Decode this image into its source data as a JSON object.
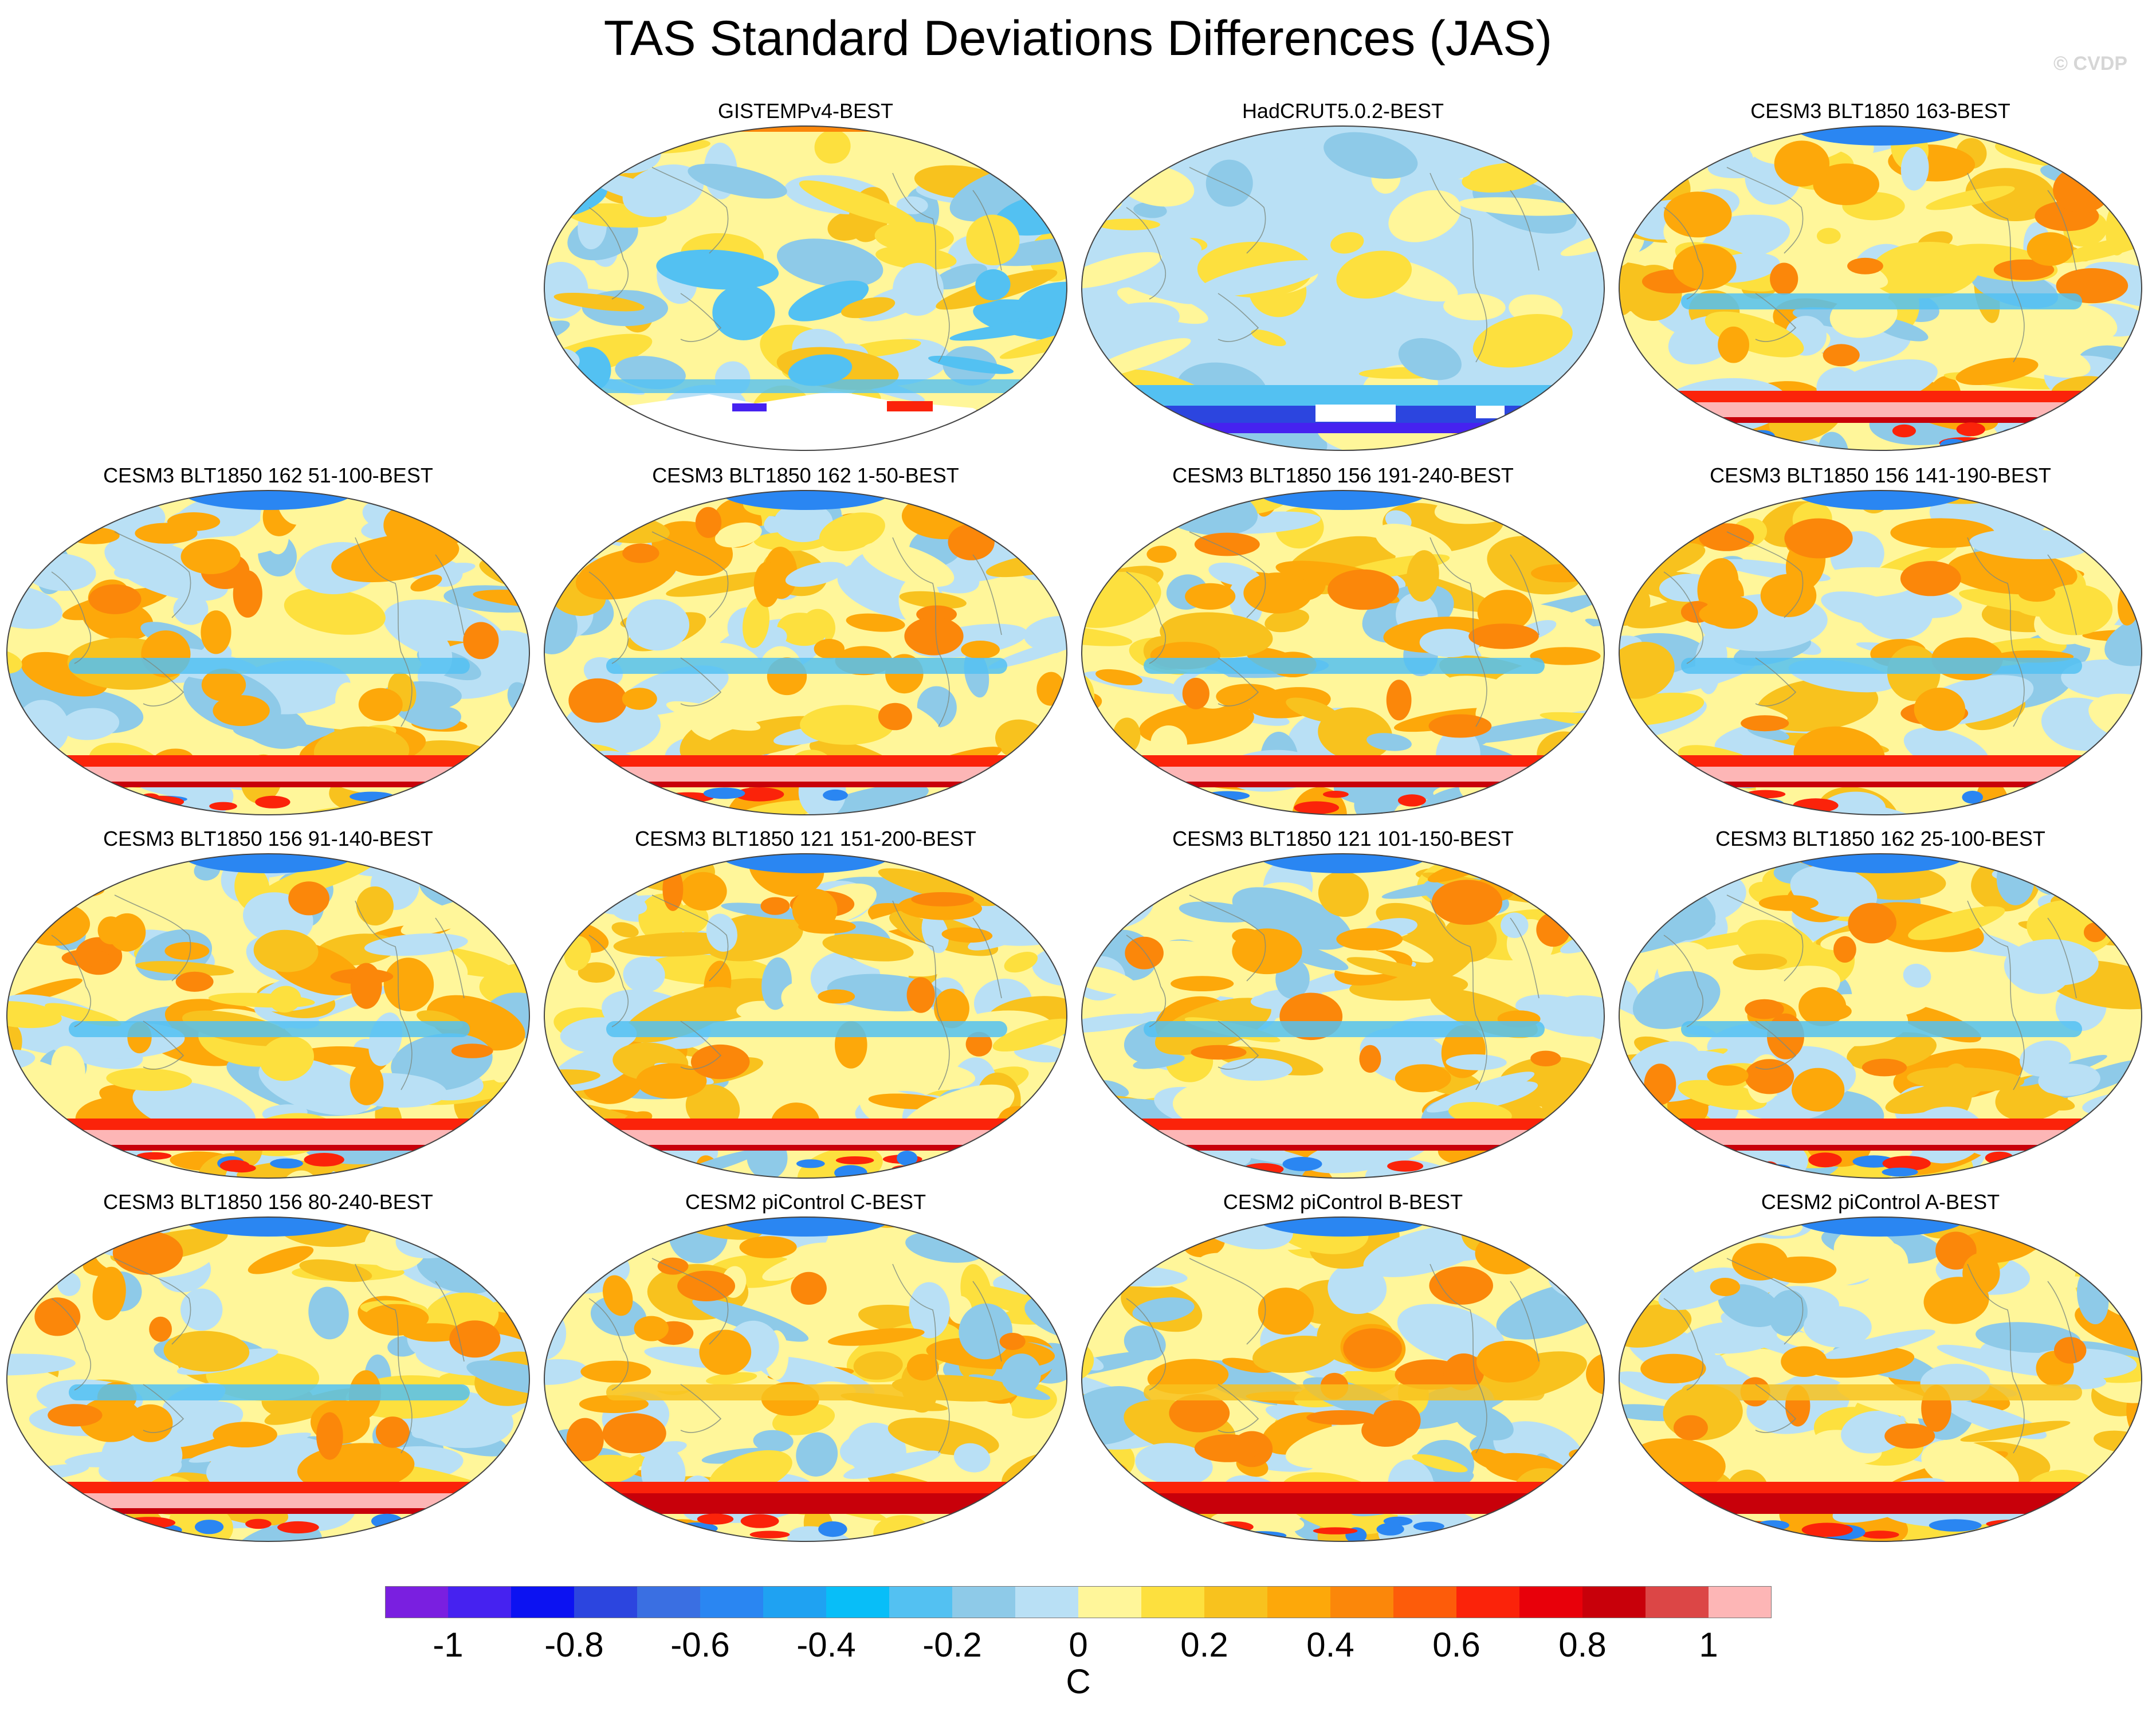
{
  "title": "TAS Standard Deviations Differences (JAS)",
  "watermark": "© CVDP",
  "panels": [
    {
      "label": "GISTEMPv4-BEST",
      "kind": "gistemp"
    },
    {
      "label": "HadCRUT5.0.2-BEST",
      "kind": "hadcrut"
    },
    {
      "label": "CESM3 BLT1850 163-BEST",
      "kind": "model"
    },
    {
      "label": "CESM3 BLT1850 162 51-100-BEST",
      "kind": "model"
    },
    {
      "label": "CESM3 BLT1850 162 1-50-BEST",
      "kind": "model"
    },
    {
      "label": "CESM3 BLT1850 156 191-240-BEST",
      "kind": "model"
    },
    {
      "label": "CESM3 BLT1850 156 141-190-BEST",
      "kind": "model"
    },
    {
      "label": "CESM3 BLT1850 156 91-140-BEST",
      "kind": "model"
    },
    {
      "label": "CESM3 BLT1850 121 151-200-BEST",
      "kind": "model"
    },
    {
      "label": "CESM3 BLT1850 121 101-150-BEST",
      "kind": "model"
    },
    {
      "label": "CESM3 BLT1850 162 25-100-BEST",
      "kind": "model"
    },
    {
      "label": "CESM3 BLT1850 156 80-240-BEST",
      "kind": "model"
    },
    {
      "label": "CESM2 piControl C-BEST",
      "kind": "cesm2"
    },
    {
      "label": "CESM2 piControl B-BEST",
      "kind": "cesm2"
    },
    {
      "label": "CESM2 piControl A-BEST",
      "kind": "cesm2"
    }
  ],
  "colorbar": {
    "unit": "C",
    "tick_labels": [
      "-1",
      "-0.8",
      "-0.6",
      "-0.4",
      "-0.2",
      "0",
      "0.2",
      "0.4",
      "0.6",
      "0.8",
      "1"
    ],
    "colors": [
      "#7a1fe0",
      "#4622f0",
      "#0c12f2",
      "#2c45df",
      "#3a6fe2",
      "#2a86f2",
      "#1fa2f2",
      "#08bef8",
      "#53c1f2",
      "#8ecae8",
      "#b9e0f5",
      "#fff69a",
      "#fde03e",
      "#f8c21e",
      "#fda80a",
      "#fb870a",
      "#fd5c0a",
      "#fb230a",
      "#e8000a",
      "#c8000a",
      "#dc4646",
      "#fdb6b6"
    ]
  }
}
